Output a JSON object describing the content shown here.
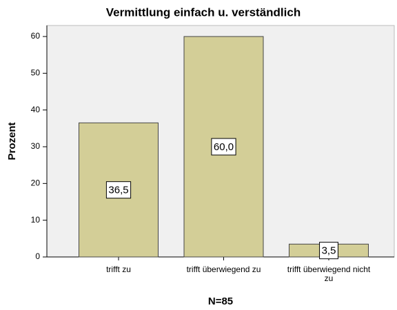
{
  "chart_data": {
    "type": "bar",
    "title": "Vermittlung einfach u. verständlich",
    "y_label": "Prozent",
    "x_label": "N=85",
    "categories": [
      "trifft zu",
      "trifft überwiegend zu",
      "trifft überwiegend nicht zu"
    ],
    "values": [
      36.5,
      60.0,
      3.5
    ],
    "value_labels": [
      "36,5",
      "60,0",
      "3,5"
    ],
    "color": "#d3ce97",
    "ylim": [
      0,
      63
    ],
    "yticks": [
      0,
      10,
      20,
      30,
      40,
      50,
      60
    ],
    "grid": false
  }
}
